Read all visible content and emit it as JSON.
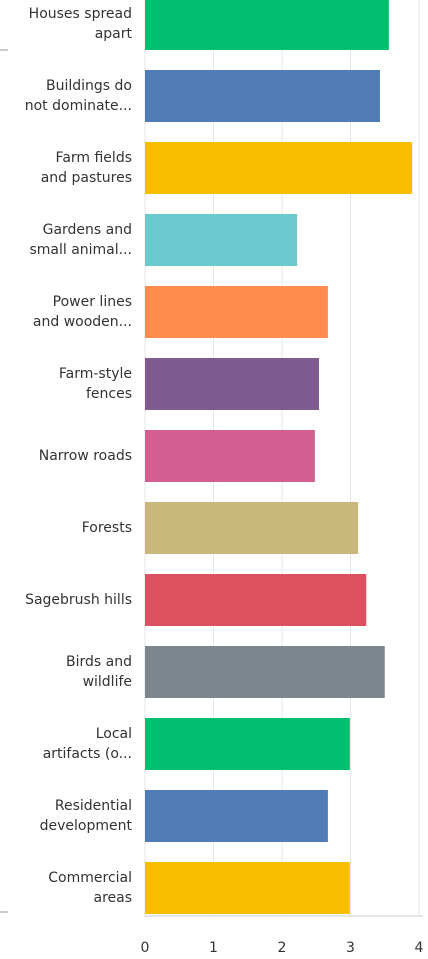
{
  "chart_data": {
    "type": "hbar",
    "categories": [
      "Houses spread\napart",
      "Buildings do\nnot dominate...",
      "Farm fields\nand pastures",
      "Gardens and\nsmall animal...",
      "Power lines\nand wooden...",
      "Farm-style\nfences",
      "Narrow roads",
      "Forests",
      "Sagebrush hills",
      "Birds and\nwildlife",
      "Local\nartifacts (o...",
      "Residential\ndevelopment",
      "Commercial\nareas"
    ],
    "values": [
      3.56,
      3.43,
      3.9,
      2.22,
      2.67,
      2.54,
      2.48,
      3.11,
      3.23,
      3.5,
      2.99,
      2.67,
      2.99
    ],
    "colors": [
      "#00bf6f",
      "#507cb6",
      "#f9be00",
      "#6bc8cd",
      "#ff8b4f",
      "#7f5a8f",
      "#d25f90",
      "#c9b77b",
      "#dd5060",
      "#7d868c",
      "#00bf6f",
      "#507cb6",
      "#f9be00"
    ],
    "xlim": [
      0,
      4
    ],
    "xticks": [
      0,
      1,
      2,
      3,
      4
    ],
    "grid": true
  }
}
